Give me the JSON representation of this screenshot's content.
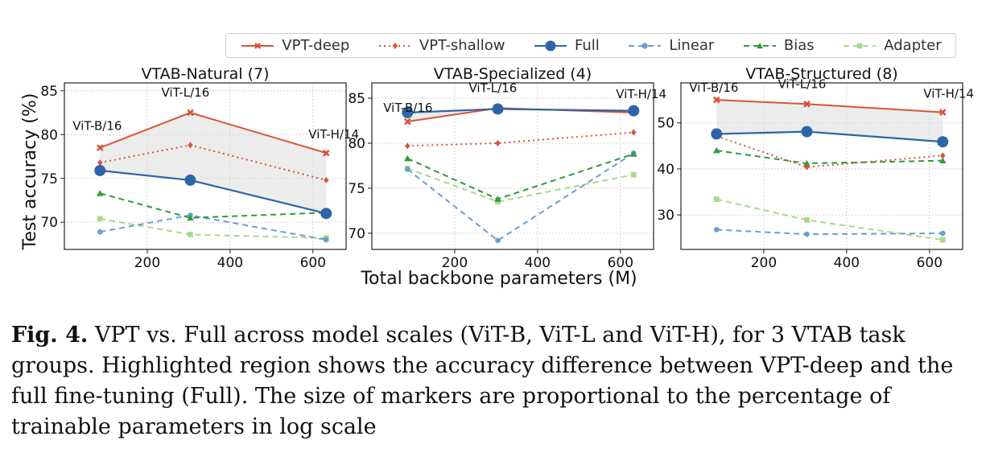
{
  "legend": [
    {
      "name": "VPT-deep",
      "color": "#d9533b",
      "dash": "",
      "marker": "x"
    },
    {
      "name": "VPT-shallow",
      "color": "#d9533b",
      "dash": "2,4",
      "marker": "diamond"
    },
    {
      "name": "Full",
      "color": "#2f64a8",
      "dash": "",
      "marker": "circle"
    },
    {
      "name": "Linear",
      "color": "#6a9fce",
      "dash": "7,5",
      "marker": "hex"
    },
    {
      "name": "Bias",
      "color": "#2f9a3c",
      "dash": "7,5",
      "marker": "triangle"
    },
    {
      "name": "Adapter",
      "color": "#a8d98a",
      "dash": "7,5",
      "marker": "square"
    }
  ],
  "shared_ylabel": "Test accuracy (%)",
  "shared_xlabel": "Total backbone parameters (M)",
  "caption": {
    "label": "Fig. 4.",
    "text": "VPT vs. Full across model scales (ViT-B, ViT-L and ViT-H), for 3 VTAB task groups. Highlighted region shows the accuracy difference between VPT-deep and the full fine-tuning (Full). The size of markers are proportional to the percentage of trainable parameters in log scale"
  },
  "chart_data": [
    {
      "type": "line",
      "title": "VTAB-Natural (7)",
      "x": [
        86,
        304,
        632
      ],
      "xticks": [
        200,
        400,
        600
      ],
      "xlim": [
        0,
        680
      ],
      "yticks": [
        70,
        75,
        80,
        85
      ],
      "ylim": [
        66.9,
        85.9
      ],
      "model_labels": [
        "ViT-B/16",
        "ViT-L/16",
        "ViT-H/14"
      ],
      "shaded_between": [
        "VPT-deep",
        "Full"
      ],
      "series": [
        {
          "name": "VPT-deep",
          "values": [
            78.5,
            82.5,
            77.9
          ]
        },
        {
          "name": "VPT-shallow",
          "values": [
            76.8,
            78.8,
            74.8
          ]
        },
        {
          "name": "Full",
          "values": [
            75.9,
            74.8,
            71.0
          ]
        },
        {
          "name": "Linear",
          "values": [
            68.9,
            70.8,
            68.0
          ]
        },
        {
          "name": "Bias",
          "values": [
            73.3,
            70.5,
            71.1
          ]
        },
        {
          "name": "Adapter",
          "values": [
            70.4,
            68.6,
            68.2
          ]
        }
      ]
    },
    {
      "type": "line",
      "title": "VTAB-Specialized (4)",
      "x": [
        86,
        304,
        632
      ],
      "xticks": [
        200,
        400,
        600
      ],
      "xlim": [
        0,
        680
      ],
      "yticks": [
        70,
        75,
        80,
        85
      ],
      "ylim": [
        68.2,
        86.7
      ],
      "model_labels": [
        "ViT-B/16",
        "ViT-L/16",
        "ViT-H/14"
      ],
      "shaded_between": [
        "VPT-deep",
        "Full"
      ],
      "series": [
        {
          "name": "VPT-deep",
          "values": [
            82.4,
            83.9,
            83.4
          ]
        },
        {
          "name": "VPT-shallow",
          "values": [
            79.7,
            80.0,
            81.2
          ]
        },
        {
          "name": "Full",
          "values": [
            83.4,
            83.8,
            83.6
          ]
        },
        {
          "name": "Linear",
          "values": [
            77.1,
            69.2,
            78.9
          ]
        },
        {
          "name": "Bias",
          "values": [
            78.3,
            73.8,
            78.8
          ]
        },
        {
          "name": "Adapter",
          "values": [
            77.2,
            73.5,
            76.5
          ]
        }
      ]
    },
    {
      "type": "line",
      "title": "VTAB-Structured (8)",
      "x": [
        86,
        304,
        632
      ],
      "xticks": [
        200,
        400,
        600
      ],
      "xlim": [
        0,
        680
      ],
      "yticks": [
        30,
        40,
        50
      ],
      "ylim": [
        22.5,
        58.7
      ],
      "model_labels": [
        "ViT-B/16",
        "ViT-L/16",
        "ViT-H/14"
      ],
      "shaded_between": [
        "VPT-deep",
        "Full"
      ],
      "series": [
        {
          "name": "VPT-deep",
          "values": [
            55.0,
            54.1,
            52.3
          ]
        },
        {
          "name": "VPT-shallow",
          "values": [
            47.1,
            40.4,
            42.9
          ]
        },
        {
          "name": "Full",
          "values": [
            47.6,
            48.1,
            45.9
          ]
        },
        {
          "name": "Linear",
          "values": [
            26.8,
            25.8,
            26.0
          ]
        },
        {
          "name": "Bias",
          "values": [
            44.0,
            41.2,
            41.8
          ]
        },
        {
          "name": "Adapter",
          "values": [
            33.4,
            28.9,
            24.6
          ]
        }
      ]
    }
  ]
}
